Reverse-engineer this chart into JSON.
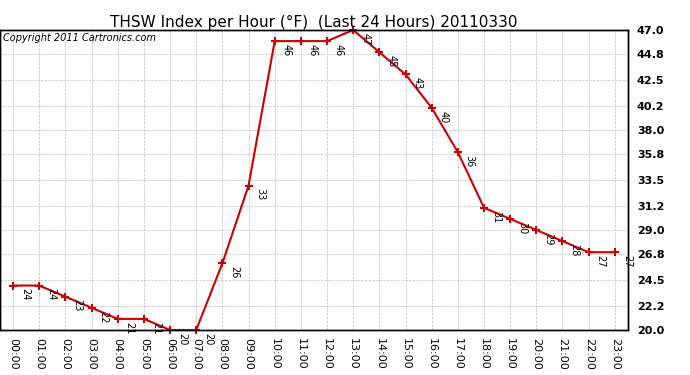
{
  "title": "THSW Index per Hour (°F)  (Last 24 Hours) 20110330",
  "copyright": "Copyright 2011 Cartronics.com",
  "hours": [
    "00:00",
    "01:00",
    "02:00",
    "03:00",
    "04:00",
    "05:00",
    "06:00",
    "07:00",
    "08:00",
    "09:00",
    "10:00",
    "11:00",
    "12:00",
    "13:00",
    "14:00",
    "15:00",
    "16:00",
    "17:00",
    "18:00",
    "19:00",
    "20:00",
    "21:00",
    "22:00",
    "23:00"
  ],
  "values": [
    24,
    24,
    23,
    22,
    21,
    21,
    20,
    20,
    26,
    33,
    46,
    46,
    46,
    47,
    45,
    43,
    40,
    36,
    31,
    30,
    29,
    28,
    27,
    27
  ],
  "ylim_min": 20.0,
  "ylim_max": 47.0,
  "yticks": [
    20.0,
    22.2,
    24.5,
    26.8,
    29.0,
    31.2,
    33.5,
    35.8,
    38.0,
    40.2,
    42.5,
    44.8,
    47.0
  ],
  "line_color": "#cc0000",
  "marker_color": "#cc0000",
  "bg_color": "#ffffff",
  "grid_color": "#bbbbbb",
  "title_fontsize": 11,
  "label_fontsize": 8,
  "annot_fontsize": 7,
  "copyright_fontsize": 7
}
